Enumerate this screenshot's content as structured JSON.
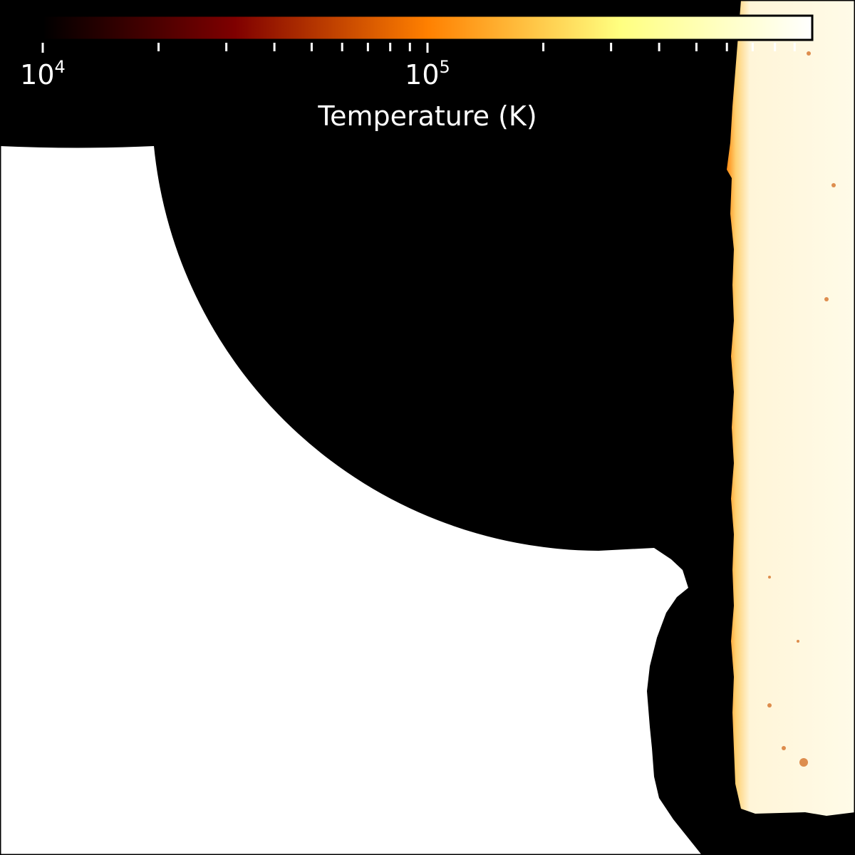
{
  "chart_data": {
    "type": "heatmap",
    "title": "",
    "colormap": "afmhot",
    "colormap_stops": [
      "#000000",
      "#7f0000",
      "#ff8000",
      "#ffff80",
      "#ffffff"
    ],
    "background": "#000000",
    "colorbar": {
      "placement": "top",
      "scale": "log",
      "range": [
        10000,
        1000000
      ],
      "label": "Temperature (K)",
      "major_ticks": [
        {
          "value": 10000,
          "base": "10",
          "exponent": "4"
        },
        {
          "value": 100000,
          "base": "10",
          "exponent": "5"
        }
      ],
      "minor_ticks": [
        20000,
        30000,
        40000,
        50000,
        60000,
        70000,
        80000,
        90000,
        200000,
        300000,
        400000,
        500000,
        600000,
        700000,
        800000,
        900000
      ]
    },
    "regions": [
      {
        "name": "cold-void",
        "temperature": 10000
      },
      {
        "name": "unresolved-white-region",
        "temperature": 1000000
      },
      {
        "name": "hot-gas-column",
        "temperature": 800000
      }
    ],
    "grid": false
  }
}
